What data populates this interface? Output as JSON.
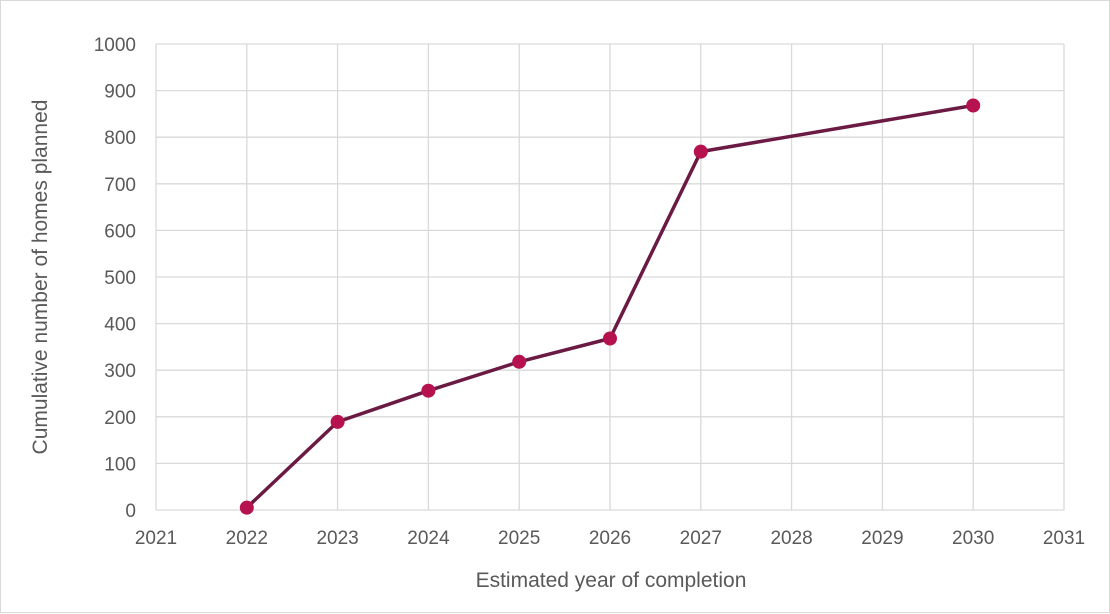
{
  "chart_data": {
    "type": "scatter",
    "xlabel": "Estimated year of completion",
    "ylabel": "Cumulative number of homes planned",
    "xlim": [
      2021,
      2031
    ],
    "ylim": [
      0,
      1000
    ],
    "x_ticks": [
      2021,
      2022,
      2023,
      2024,
      2025,
      2026,
      2027,
      2028,
      2029,
      2030,
      2031
    ],
    "y_ticks": [
      0,
      100,
      200,
      300,
      400,
      500,
      600,
      700,
      800,
      900,
      1000
    ],
    "grid": true,
    "legend": "none",
    "series": [
      {
        "x": [
          2022,
          2023,
          2024,
          2025,
          2026,
          2027,
          2030
        ],
        "y": [
          5,
          189,
          256,
          318,
          368,
          769,
          868
        ]
      }
    ],
    "colors": {
      "line": "#6b1a43",
      "marker": "#b5124f",
      "grid": "#d9d9d9",
      "text": "#595959"
    }
  }
}
